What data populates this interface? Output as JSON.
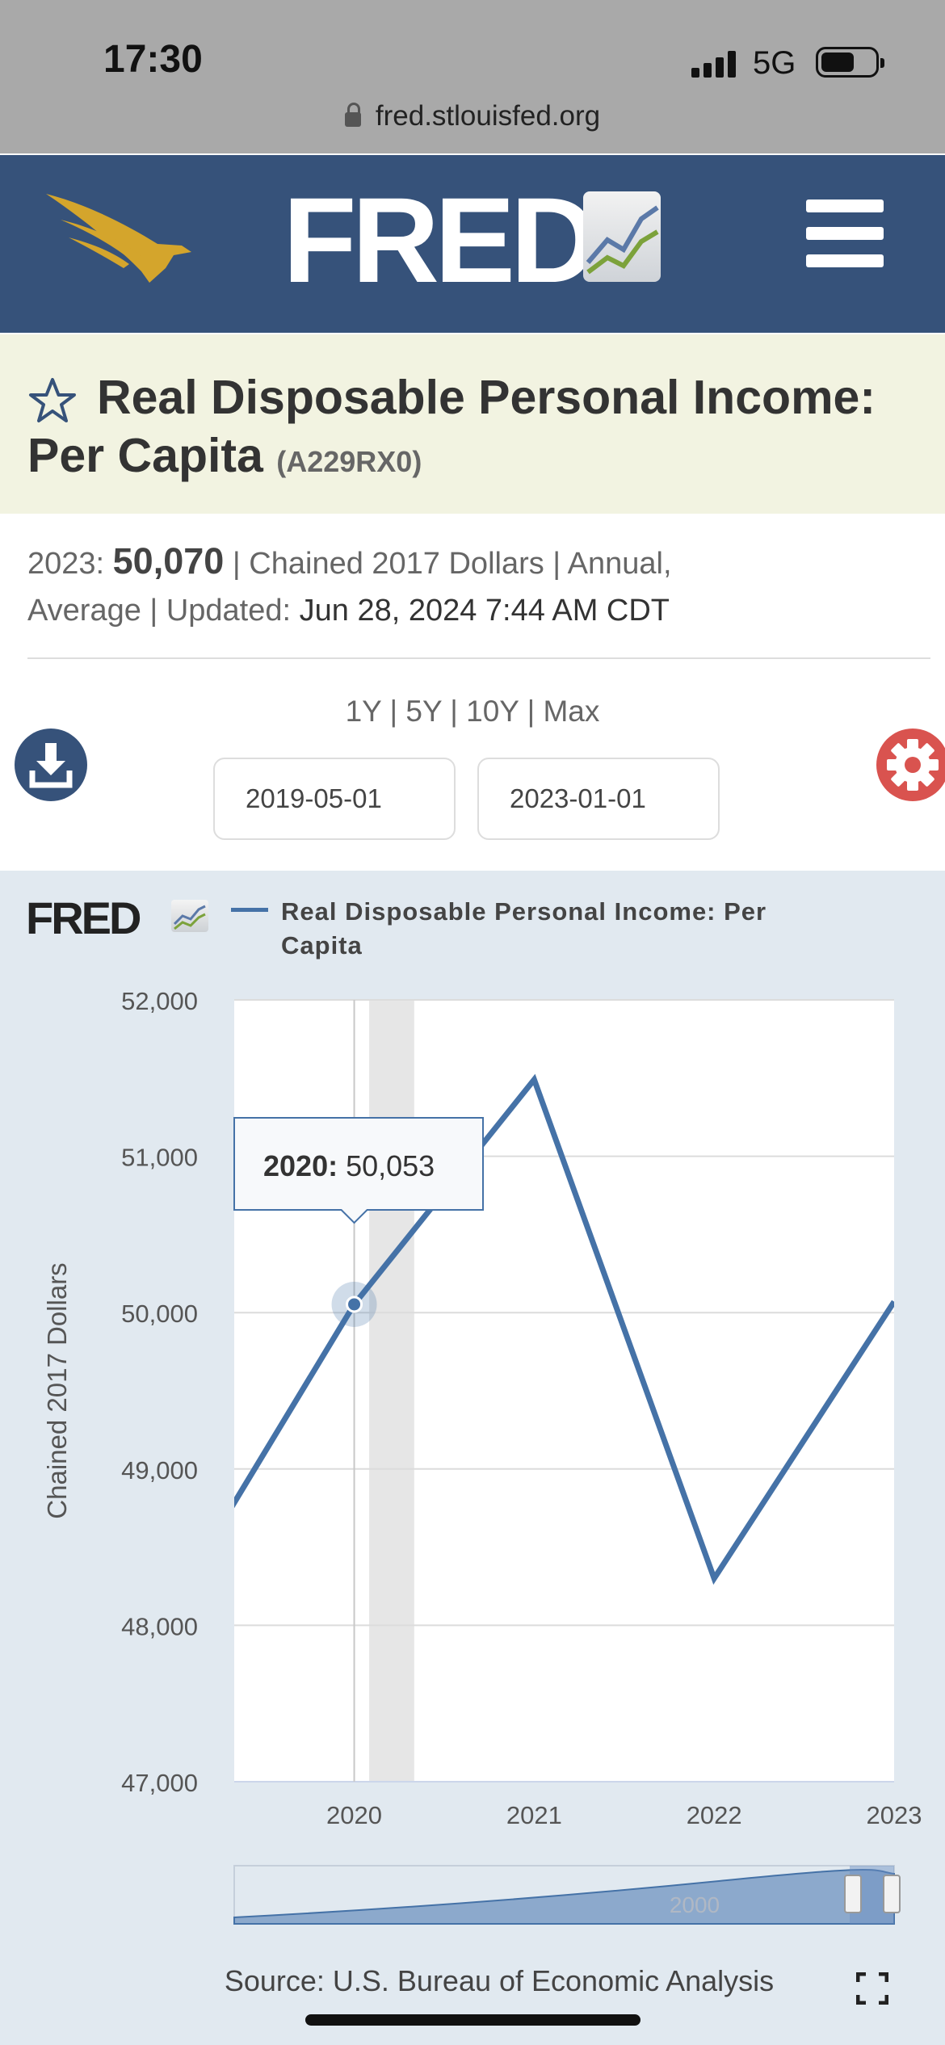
{
  "status_bar": {
    "time": "17:30",
    "network": "5G"
  },
  "browser": {
    "url": "fred.stlouisfed.org"
  },
  "header": {
    "logo_text": "FRED",
    "logo_registered": "®"
  },
  "series": {
    "title": "Real Disposable Personal Income: Per Capita",
    "id": "(A229RX0)",
    "latest_label": "2023:",
    "latest_value": "50,070",
    "units": "| Chained 2017 Dollars | Annual,",
    "frequency_line": "Average | Updated:",
    "updated": "Jun 28, 2024 7:44 AM CDT"
  },
  "range_buttons": [
    "1Y",
    "5Y",
    "10Y",
    "Max"
  ],
  "date_range": {
    "start": "2019-05-01",
    "end": "2023-01-01"
  },
  "chart_panel": {
    "fred_mini": "FRED",
    "legend_label": "Real Disposable Personal Income: Per Capita",
    "source": "Source: U.S. Bureau of Economic Analysis",
    "navigator_label": "2000"
  },
  "colors": {
    "header_bg": "#36527a",
    "series_line": "#4572a7",
    "settings": "#d9534f",
    "title_band": "#f2f3e1",
    "chart_bg": "#e1e9f0"
  },
  "icons": [
    "lock-icon",
    "eagle-logo-icon",
    "menu-icon",
    "star-icon",
    "download-icon",
    "gear-icon",
    "fullscreen-icon"
  ],
  "chart_data": {
    "type": "line",
    "title": "",
    "ylabel": "Chained 2017 Dollars",
    "xlabel": "",
    "x": [
      "2019",
      "2020",
      "2021",
      "2022",
      "2023"
    ],
    "ylim": [
      47000,
      52000
    ],
    "yticks": [
      "47,000",
      "48,000",
      "49,000",
      "50,000",
      "51,000",
      "52,000"
    ],
    "xticks": [
      "2020",
      "2021",
      "2022",
      "2023"
    ],
    "series": [
      {
        "name": "Real Disposable Personal Income: Per Capita",
        "values": [
          48150,
          50053,
          51490,
          48300,
          50070
        ]
      }
    ],
    "recession_shading": {
      "start": "2020-02",
      "end": "2020-04"
    },
    "tooltip": {
      "label": "2020:",
      "value": "50,053"
    },
    "grid": true,
    "legend": "top"
  }
}
